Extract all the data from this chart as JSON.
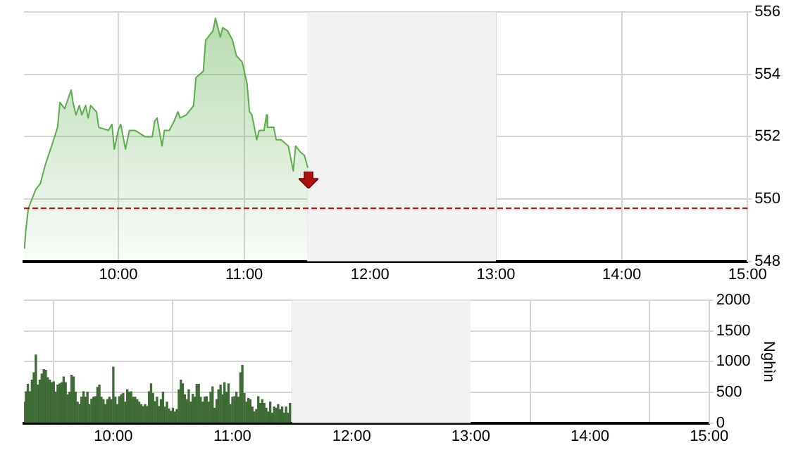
{
  "chart_data": [
    {
      "type": "area",
      "color": "#5aad4a",
      "xlim": [
        9.25,
        15
      ],
      "ylim": [
        548,
        556
      ],
      "grid": true,
      "xticks": [
        {
          "value": 10,
          "label": "10:00"
        },
        {
          "value": 11,
          "label": "11:00"
        },
        {
          "value": 12,
          "label": "12:00"
        },
        {
          "value": 13,
          "label": "13:00"
        },
        {
          "value": 14,
          "label": "14:00"
        },
        {
          "value": 15,
          "label": "15:00"
        }
      ],
      "yticks": [
        548,
        550,
        552,
        554,
        556
      ],
      "x": [
        9.254,
        9.265,
        9.285,
        9.343,
        9.381,
        9.42,
        9.478,
        9.517,
        9.536,
        9.574,
        9.625,
        9.64,
        9.663,
        9.69,
        9.71,
        9.74,
        9.76,
        9.78,
        9.826,
        9.845,
        9.922,
        9.949,
        9.968,
        9.999,
        10.019,
        10.057,
        10.088,
        10.134,
        10.212,
        10.27,
        10.289,
        10.308,
        10.347,
        10.366,
        10.405,
        10.443,
        10.474,
        10.49,
        10.54,
        10.598,
        10.617,
        10.675,
        10.694,
        10.752,
        10.772,
        10.791,
        10.81,
        10.83,
        10.868,
        10.907,
        10.938,
        10.984,
        11.023,
        11.042,
        11.061,
        11.1,
        11.119,
        11.158,
        11.177,
        11.185,
        11.235,
        11.255,
        11.293,
        11.351,
        11.39,
        11.409,
        11.448,
        11.479,
        11.506
      ],
      "values": [
        548.4,
        549.0,
        549.7,
        550.3,
        550.5,
        551.1,
        551.8,
        552.3,
        553.1,
        552.9,
        553.5,
        553.1,
        552.7,
        553.0,
        552.7,
        553.0,
        552.6,
        553.0,
        552.8,
        552.3,
        552.2,
        552.4,
        551.6,
        552.2,
        552.4,
        551.6,
        552.2,
        552.2,
        552.0,
        552.0,
        552.5,
        552.6,
        551.7,
        552.2,
        552.2,
        552.5,
        552.8,
        552.6,
        552.7,
        553.0,
        553.9,
        554.1,
        555.1,
        555.4,
        555.8,
        555.5,
        555.2,
        555.5,
        555.4,
        555.1,
        554.6,
        554.4,
        553.7,
        552.8,
        552.7,
        551.9,
        552.2,
        552.2,
        552.7,
        552.3,
        552.3,
        551.9,
        551.9,
        551.7,
        550.9,
        551.7,
        551.5,
        551.4,
        551.0
      ],
      "ref_lines": [
        {
          "axis": "y",
          "value": 549.7,
          "color": "#cc0000",
          "line_style": "dashed"
        }
      ],
      "bands": [
        {
          "axis": "x",
          "from": 11.5,
          "to": 13,
          "color": "#f2f2f2"
        }
      ]
    },
    {
      "type": "bar",
      "color": "#3e6b35",
      "xlim": [
        9.25,
        15
      ],
      "ylim": [
        0,
        2000
      ],
      "grid": true,
      "ylabel": "Nghìn",
      "xticks": [
        {
          "value": 10,
          "label": "10:00"
        },
        {
          "value": 11,
          "label": "11:00"
        },
        {
          "value": 12,
          "label": "12:00"
        },
        {
          "value": 13,
          "label": "13:00"
        },
        {
          "value": 14,
          "label": "14:00"
        },
        {
          "value": 15,
          "label": "15:00"
        }
      ],
      "yticks": [
        0,
        500,
        1000,
        1500,
        2000
      ],
      "x": [
        9.25,
        9.267,
        9.283,
        9.3,
        9.317,
        9.333,
        9.35,
        9.367,
        9.383,
        9.4,
        9.417,
        9.433,
        9.45,
        9.467,
        9.483,
        9.5,
        9.517,
        9.533,
        9.55,
        9.567,
        9.583,
        9.6,
        9.617,
        9.633,
        9.65,
        9.667,
        9.683,
        9.7,
        9.717,
        9.733,
        9.75,
        9.767,
        9.783,
        9.8,
        9.817,
        9.833,
        9.85,
        9.867,
        9.883,
        9.9,
        9.917,
        9.933,
        9.95,
        9.967,
        9.983,
        10,
        10.017,
        10.033,
        10.05,
        10.067,
        10.083,
        10.1,
        10.117,
        10.133,
        10.15,
        10.167,
        10.183,
        10.2,
        10.217,
        10.233,
        10.25,
        10.267,
        10.283,
        10.3,
        10.317,
        10.333,
        10.35,
        10.367,
        10.383,
        10.4,
        10.417,
        10.433,
        10.45,
        10.467,
        10.483,
        10.5,
        10.517,
        10.533,
        10.55,
        10.567,
        10.583,
        10.6,
        10.617,
        10.633,
        10.65,
        10.667,
        10.683,
        10.7,
        10.717,
        10.733,
        10.75,
        10.767,
        10.783,
        10.8,
        10.817,
        10.833,
        10.85,
        10.867,
        10.883,
        10.9,
        10.917,
        10.933,
        10.95,
        10.967,
        10.983,
        11,
        11.017,
        11.033,
        11.05,
        11.067,
        11.083,
        11.1,
        11.117,
        11.133,
        11.15,
        11.167,
        11.183,
        11.2,
        11.217,
        11.233,
        11.25,
        11.267,
        11.283,
        11.3,
        11.317,
        11.333,
        11.35,
        11.367,
        11.383,
        11.4,
        11.417,
        11.433,
        11.45,
        11.467,
        11.483
      ],
      "values": [
        340,
        510,
        630,
        510,
        700,
        820,
        1110,
        620,
        700,
        800,
        870,
        860,
        740,
        700,
        660,
        670,
        500,
        620,
        640,
        660,
        750,
        660,
        460,
        500,
        780,
        750,
        500,
        340,
        300,
        420,
        510,
        420,
        500,
        300,
        390,
        420,
        430,
        580,
        620,
        420,
        380,
        300,
        380,
        420,
        380,
        910,
        420,
        300,
        430,
        460,
        480,
        340,
        540,
        500,
        510,
        420,
        420,
        380,
        340,
        300,
        270,
        300,
        270,
        510,
        640,
        480,
        350,
        420,
        270,
        380,
        500,
        260,
        340,
        230,
        190,
        240,
        180,
        220,
        540,
        700,
        640,
        460,
        380,
        540,
        340,
        470,
        420,
        630,
        630,
        420,
        340,
        420,
        430,
        340,
        500,
        590,
        240,
        380,
        540,
        620,
        460,
        660,
        500,
        640,
        300,
        420,
        430,
        500,
        420,
        820,
        940,
        480,
        340,
        400,
        380,
        260,
        180,
        220,
        430,
        320,
        380,
        320,
        240,
        180,
        340,
        160,
        260,
        240,
        300,
        220,
        260,
        160,
        260,
        160,
        320
      ],
      "bands": [
        {
          "axis": "x",
          "from": 11.5,
          "to": 13,
          "color": "#f2f2f2"
        }
      ]
    }
  ]
}
